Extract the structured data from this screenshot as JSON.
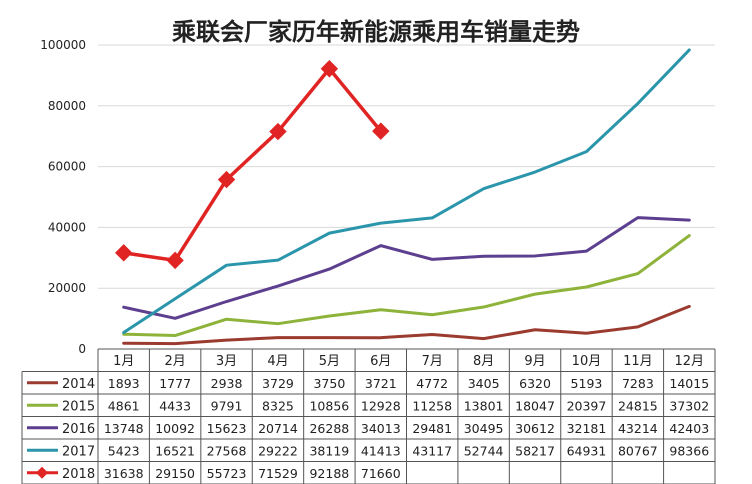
{
  "chart_data": {
    "type": "line",
    "title": "乘联会厂家历年新能源乘用车销量走势",
    "categories": [
      "1月",
      "2月",
      "3月",
      "4月",
      "5月",
      "6月",
      "7月",
      "8月",
      "9月",
      "10月",
      "11月",
      "12月"
    ],
    "ylim": [
      0,
      100000
    ],
    "yticks": [
      "0",
      "20000",
      "40000",
      "60000",
      "80000",
      "100000"
    ],
    "grid": true,
    "legend": "data-table",
    "series": [
      {
        "name": "2014",
        "color": "#9b3b2f",
        "values": [
          1893,
          1777,
          2938,
          3729,
          3750,
          3721,
          4772,
          3405,
          6320,
          5193,
          7283,
          14015
        ],
        "labels": [
          "1893",
          "1777",
          "2938",
          "3729",
          "3750",
          "3721",
          "4772",
          "3405",
          "6320",
          "5193",
          "7283",
          "14015"
        ]
      },
      {
        "name": "2015",
        "color": "#8db33a",
        "values": [
          4861,
          4433,
          9791,
          8325,
          10856,
          12928,
          11258,
          13801,
          18047,
          20397,
          24815,
          37302
        ],
        "labels": [
          "4861",
          "4433",
          "9791",
          "8325",
          "10856",
          "12928",
          "11258",
          "13801",
          "18047",
          "20397",
          "24815",
          "37302"
        ]
      },
      {
        "name": "2016",
        "color": "#5d3f8f",
        "values": [
          13748,
          10092,
          15623,
          20714,
          26288,
          34013,
          29481,
          30495,
          30612,
          32181,
          43214,
          42403
        ],
        "labels": [
          "13748",
          "10092",
          "15623",
          "20714",
          "26288",
          "34013",
          "29481",
          "30495",
          "30612",
          "32181",
          "43214",
          "42403"
        ]
      },
      {
        "name": "2017",
        "color": "#2b96ab",
        "values": [
          5423,
          16521,
          27568,
          29222,
          38119,
          41413,
          43117,
          52744,
          58217,
          64931,
          80767,
          98366
        ],
        "labels": [
          "5423",
          "16521",
          "27568",
          "29222",
          "38119",
          "41413",
          "43117",
          "52744",
          "58217",
          "64931",
          "80767",
          "98366"
        ]
      },
      {
        "name": "2018",
        "color": "#e02424",
        "marker": "diamond",
        "values": [
          31638,
          29150,
          55723,
          71529,
          92188,
          71660,
          null,
          null,
          null,
          null,
          null,
          null
        ],
        "labels": [
          "31638",
          "29150",
          "55723",
          "71529",
          "92188",
          "71660",
          "",
          "",
          "",
          "",
          "",
          ""
        ]
      }
    ]
  }
}
